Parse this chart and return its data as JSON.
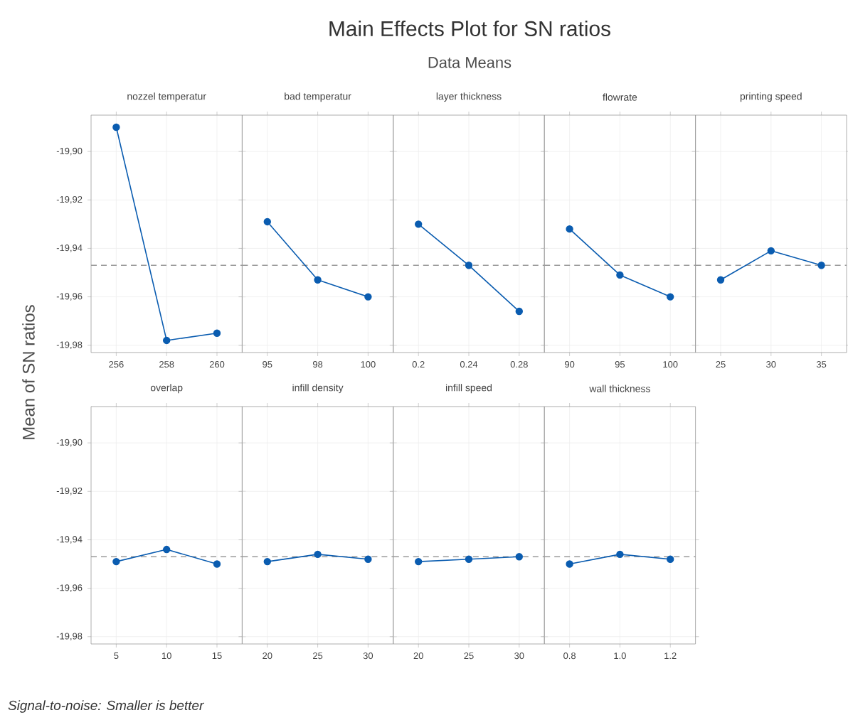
{
  "chart_data": [
    {
      "type": "line",
      "title": "nozzel temperatur",
      "categories": [
        "256",
        "258",
        "260"
      ],
      "values": [
        -19.89,
        -19.978,
        -19.975
      ],
      "color": "#0a5cb0",
      "marker": "circle",
      "grid": true,
      "ylim": [
        -19.983,
        -19.885
      ],
      "yticks": [
        {
          "value": -19.9,
          "label": "-19,90"
        },
        {
          "value": -19.92,
          "label": "-19,92"
        },
        {
          "value": -19.94,
          "label": "-19,94"
        },
        {
          "value": -19.96,
          "label": "-19,96"
        },
        {
          "value": -19.98,
          "label": "-19,98"
        }
      ],
      "ref_lines": [
        {
          "axis": "y",
          "value": -19.947,
          "color": "#999999",
          "line_style": "dashed"
        }
      ]
    },
    {
      "type": "line",
      "title": "bad temperatur",
      "categories": [
        "95",
        "98",
        "100"
      ],
      "values": [
        -19.929,
        -19.953,
        -19.96
      ],
      "color": "#0a5cb0",
      "marker": "circle",
      "grid": true,
      "tick_labels": "x",
      "ylim": [
        -19.983,
        -19.885
      ],
      "yticks": [
        {
          "value": -19.9,
          "label": null
        },
        {
          "value": -19.92,
          "label": null
        },
        {
          "value": -19.94,
          "label": null
        },
        {
          "value": -19.96,
          "label": null
        },
        {
          "value": -19.98,
          "label": null
        }
      ],
      "ref_lines": [
        {
          "axis": "y",
          "value": -19.947,
          "color": "#999999",
          "line_style": "dashed"
        }
      ]
    },
    {
      "type": "line",
      "title": "layer thickness",
      "categories": [
        "0.2",
        "0.24",
        "0.28"
      ],
      "values": [
        -19.93,
        -19.947,
        -19.966
      ],
      "color": "#0a5cb0",
      "marker": "circle",
      "grid": true,
      "tick_labels": "x",
      "ylim": [
        -19.983,
        -19.885
      ],
      "yticks": [
        {
          "value": -19.9,
          "label": null
        },
        {
          "value": -19.92,
          "label": null
        },
        {
          "value": -19.94,
          "label": null
        },
        {
          "value": -19.96,
          "label": null
        },
        {
          "value": -19.98,
          "label": null
        }
      ],
      "ref_lines": [
        {
          "axis": "y",
          "value": -19.947,
          "color": "#999999",
          "line_style": "dashed"
        }
      ]
    },
    {
      "type": "line",
      "title": "flowrate",
      "categories": [
        "90",
        "95",
        "100"
      ],
      "values": [
        -19.932,
        -19.951,
        -19.96
      ],
      "color": "#0a5cb0",
      "marker": "circle",
      "grid": true,
      "tick_labels": "x",
      "ylim": [
        -19.983,
        -19.885
      ],
      "yticks": [
        {
          "value": -19.9,
          "label": null
        },
        {
          "value": -19.92,
          "label": null
        },
        {
          "value": -19.94,
          "label": null
        },
        {
          "value": -19.96,
          "label": null
        },
        {
          "value": -19.98,
          "label": null
        }
      ],
      "ref_lines": [
        {
          "axis": "y",
          "value": -19.947,
          "color": "#999999",
          "line_style": "dashed"
        }
      ]
    },
    {
      "type": "line",
      "title": "printing speed",
      "categories": [
        "25",
        "30",
        "35"
      ],
      "values": [
        -19.953,
        -19.941,
        -19.947
      ],
      "color": "#0a5cb0",
      "marker": "circle",
      "grid": true,
      "tick_labels": "x",
      "ylim": [
        -19.983,
        -19.885
      ],
      "yticks": [
        {
          "value": -19.9,
          "label": null
        },
        {
          "value": -19.92,
          "label": null
        },
        {
          "value": -19.94,
          "label": null
        },
        {
          "value": -19.96,
          "label": null
        },
        {
          "value": -19.98,
          "label": null
        }
      ],
      "ref_lines": [
        {
          "axis": "y",
          "value": -19.947,
          "color": "#999999",
          "line_style": "dashed"
        }
      ]
    },
    {
      "type": "line",
      "title": "overlap",
      "categories": [
        "5",
        "10",
        "15"
      ],
      "values": [
        -19.949,
        -19.944,
        -19.95
      ],
      "color": "#0a5cb0",
      "marker": "circle",
      "grid": true,
      "ylim": [
        -19.983,
        -19.885
      ],
      "yticks": [
        {
          "value": -19.9,
          "label": "-19,90"
        },
        {
          "value": -19.92,
          "label": "-19,92"
        },
        {
          "value": -19.94,
          "label": "-19,94"
        },
        {
          "value": -19.96,
          "label": "-19,96"
        },
        {
          "value": -19.98,
          "label": "-19,98"
        }
      ],
      "ref_lines": [
        {
          "axis": "y",
          "value": -19.947,
          "color": "#999999",
          "line_style": "dashed"
        }
      ]
    },
    {
      "type": "line",
      "title": "infill density",
      "categories": [
        "20",
        "25",
        "30"
      ],
      "values": [
        -19.949,
        -19.946,
        -19.948
      ],
      "color": "#0a5cb0",
      "marker": "circle",
      "grid": true,
      "tick_labels": "x",
      "ylim": [
        -19.983,
        -19.885
      ],
      "yticks": [
        {
          "value": -19.9,
          "label": null
        },
        {
          "value": -19.92,
          "label": null
        },
        {
          "value": -19.94,
          "label": null
        },
        {
          "value": -19.96,
          "label": null
        },
        {
          "value": -19.98,
          "label": null
        }
      ],
      "ref_lines": [
        {
          "axis": "y",
          "value": -19.947,
          "color": "#999999",
          "line_style": "dashed"
        }
      ]
    },
    {
      "type": "line",
      "title": "infill speed",
      "categories": [
        "20",
        "25",
        "30"
      ],
      "values": [
        -19.949,
        -19.948,
        -19.947
      ],
      "color": "#0a5cb0",
      "marker": "circle",
      "grid": true,
      "tick_labels": "x",
      "ylim": [
        -19.983,
        -19.885
      ],
      "yticks": [
        {
          "value": -19.9,
          "label": null
        },
        {
          "value": -19.92,
          "label": null
        },
        {
          "value": -19.94,
          "label": null
        },
        {
          "value": -19.96,
          "label": null
        },
        {
          "value": -19.98,
          "label": null
        }
      ],
      "ref_lines": [
        {
          "axis": "y",
          "value": -19.947,
          "color": "#999999",
          "line_style": "dashed"
        }
      ]
    },
    {
      "type": "line",
      "title": "wall thickness",
      "categories": [
        "0.8",
        "1.0",
        "1.2"
      ],
      "values": [
        -19.95,
        -19.946,
        -19.948
      ],
      "color": "#0a5cb0",
      "marker": "circle",
      "grid": true,
      "tick_labels": "x",
      "ylim": [
        -19.983,
        -19.885
      ],
      "yticks": [
        {
          "value": -19.9,
          "label": null
        },
        {
          "value": -19.92,
          "label": null
        },
        {
          "value": -19.94,
          "label": null
        },
        {
          "value": -19.96,
          "label": null
        },
        {
          "value": -19.98,
          "label": null
        }
      ],
      "ref_lines": [
        {
          "axis": "y",
          "value": -19.947,
          "color": "#999999",
          "line_style": "dashed"
        }
      ]
    },
    {
      "type": "other",
      "title": "Main Effects Plot for SN ratios",
      "subtitle": "Data Means",
      "ylabel": "Mean of SN ratios",
      "annotations": [
        "Signal-to-noise: Smaller is better"
      ]
    }
  ]
}
